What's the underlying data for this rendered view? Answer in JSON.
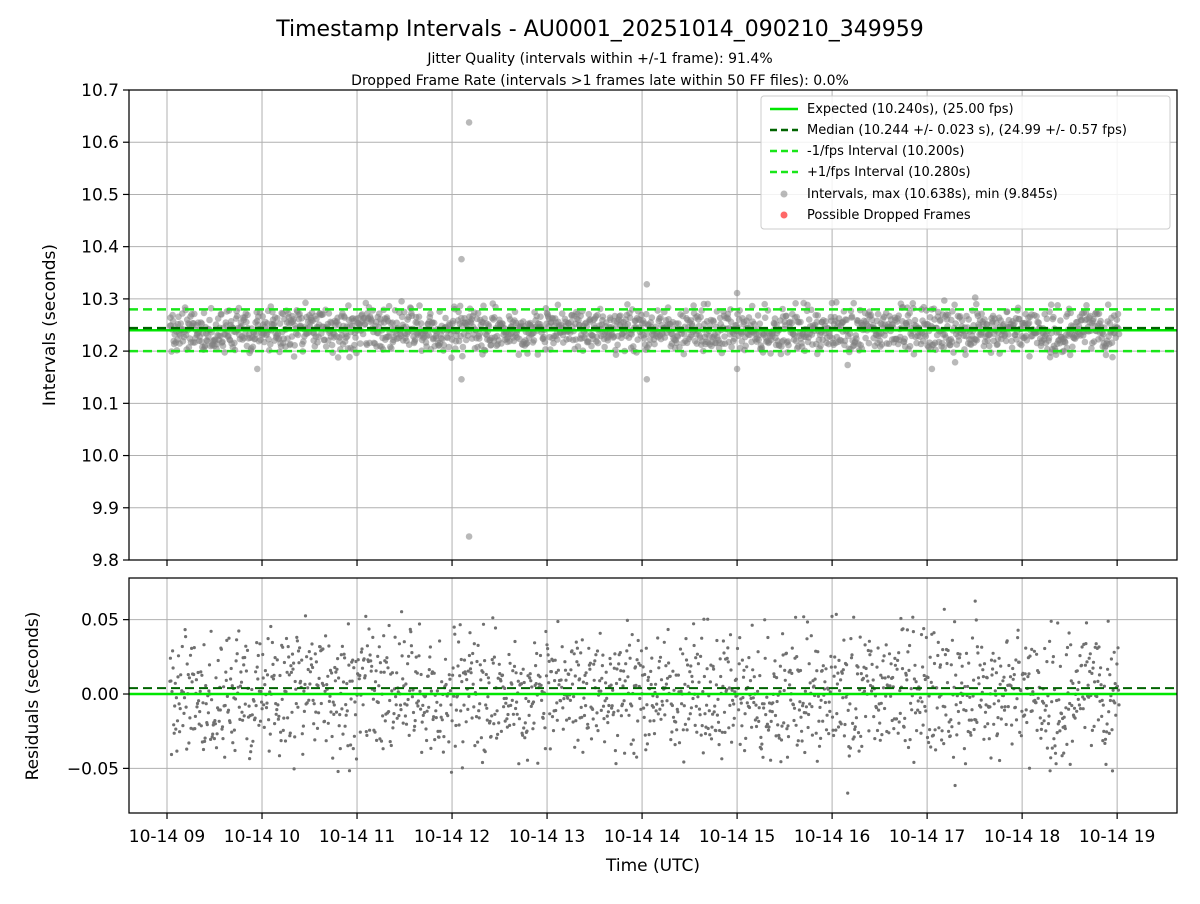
{
  "chart_data": [
    {
      "type": "scatter",
      "panel": "intervals",
      "title": "Timestamp Intervals - AU0001_20251014_090210_349959",
      "subtitle_lines": [
        "Jitter Quality (intervals within +/-1 frame): 91.4%",
        "Dropped Frame Rate (intervals >1 frames late within 50 FF files): 0.0%"
      ],
      "ylabel": "Intervals (seconds)",
      "ylim": [
        9.8,
        10.7
      ],
      "yticks": [
        "10.7",
        "10.6",
        "10.5",
        "10.4",
        "10.3",
        "10.2",
        "10.1",
        "10.0",
        "9.9",
        "9.8"
      ],
      "ytick_values": [
        10.7,
        10.6,
        10.5,
        10.4,
        10.3,
        10.2,
        10.1,
        10.0,
        9.9,
        9.8
      ],
      "grid": true,
      "legend_position": "top-right",
      "legend": [
        {
          "label": "Expected (10.240s), (25.00 fps)",
          "style": "solid",
          "color": "#00e600"
        },
        {
          "label": "Median (10.244 +/- 0.023 s), (24.99 +/- 0.57 fps)",
          "style": "dashed",
          "color": "#006400"
        },
        {
          "label": "-1/fps Interval (10.200s)",
          "style": "dashed",
          "color": "#19e619"
        },
        {
          "label": "+1/fps Interval (10.280s)",
          "style": "dashed",
          "color": "#19e619"
        },
        {
          "label": "Intervals, max (10.638s), min (9.845s)",
          "style": "marker",
          "color": "#808080"
        },
        {
          "label": "Possible Dropped Frames",
          "style": "marker",
          "color": "#ff4d4d"
        }
      ],
      "reference_lines": {
        "expected": 10.24,
        "median": 10.244,
        "minus_1fps": 10.2,
        "plus_1fps": 10.28
      },
      "intervals_summary": {
        "max": 10.638,
        "min": 9.845,
        "median": 10.244,
        "std": 0.023
      },
      "outliers": [
        {
          "hour": 12.18,
          "value": 10.638
        },
        {
          "hour": 12.1,
          "value": 10.376
        },
        {
          "hour": 12.18,
          "value": 9.845
        },
        {
          "hour": 12.1,
          "value": 10.146
        },
        {
          "hour": 14.05,
          "value": 10.146
        },
        {
          "hour": 14.05,
          "value": 10.328
        },
        {
          "hour": 15.0,
          "value": 10.166
        },
        {
          "hour": 15.0,
          "value": 10.311
        },
        {
          "hour": 17.05,
          "value": 10.166
        },
        {
          "hour": 9.95,
          "value": 10.166
        }
      ],
      "x_range_hours": [
        9.03,
        19.02
      ]
    },
    {
      "type": "scatter",
      "panel": "residuals",
      "ylabel": "Residuals (seconds)",
      "xlabel": "Time (UTC)",
      "ylim": [
        -0.08,
        0.078
      ],
      "yticks": [
        "0.05",
        "0.00",
        "−0.05"
      ],
      "ytick_values": [
        0.05,
        0.0,
        -0.05
      ],
      "xlim_hours": [
        8.6,
        19.63
      ],
      "xticks": [
        "10-14 09",
        "10-14 10",
        "10-14 11",
        "10-14 12",
        "10-14 13",
        "10-14 14",
        "10-14 15",
        "10-14 16",
        "10-14 17",
        "10-14 18",
        "10-14 19"
      ],
      "xtick_hours": [
        9,
        10,
        11,
        12,
        13,
        14,
        15,
        16,
        17,
        18,
        19
      ],
      "grid": true,
      "reference_lines": {
        "zero": 0.0,
        "median_offset": 0.004
      }
    }
  ]
}
